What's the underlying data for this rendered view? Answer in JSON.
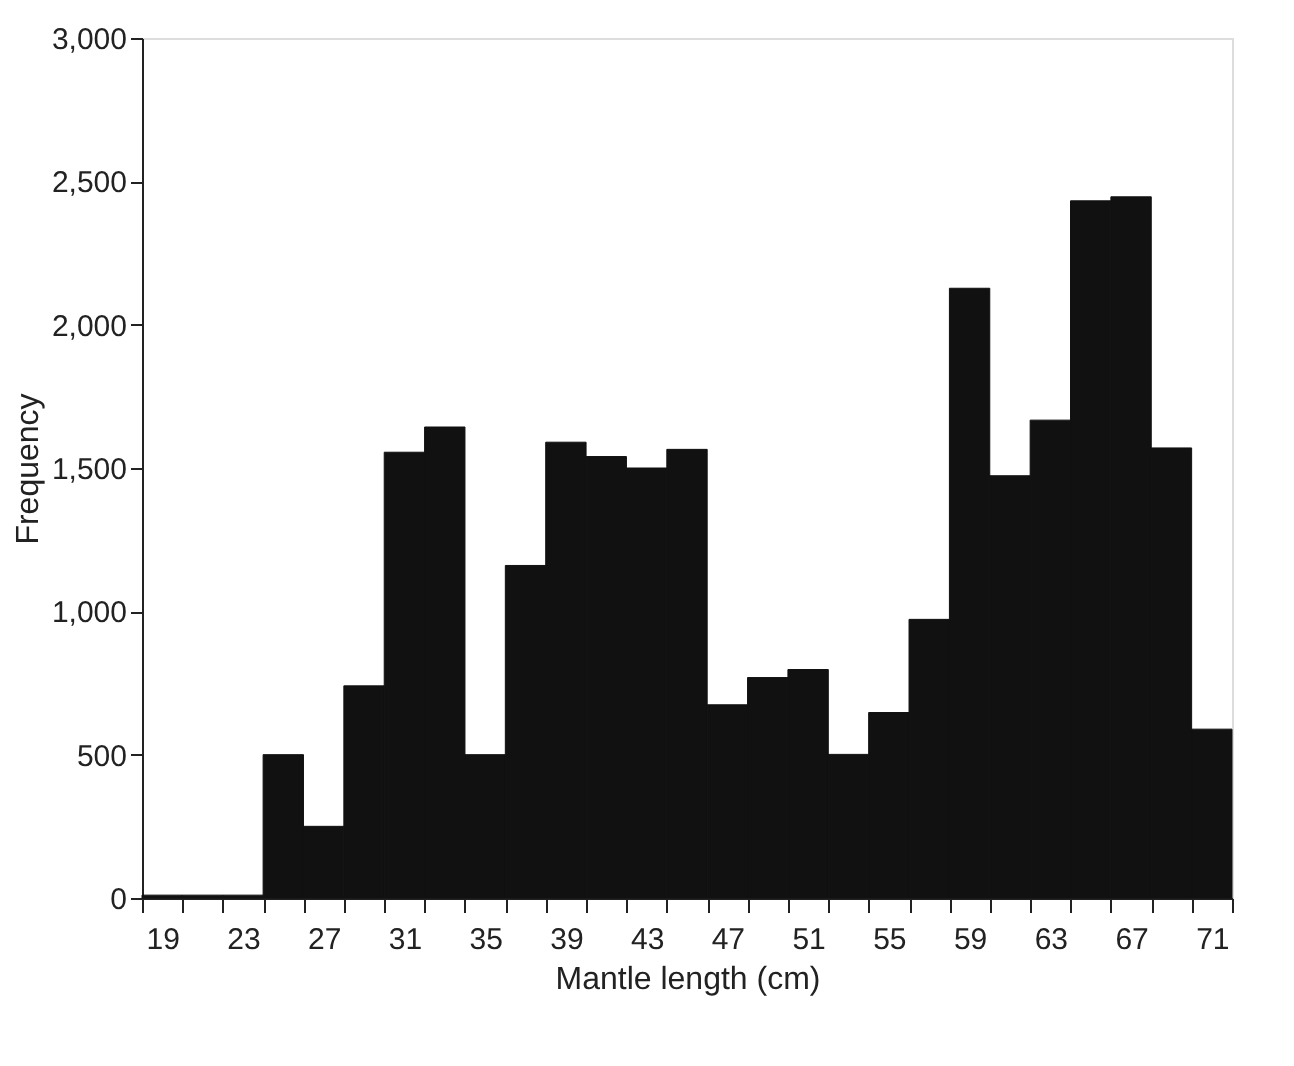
{
  "chart_data": {
    "type": "bar",
    "xlabel": "Mantle length (cm)",
    "ylabel": "Frequency",
    "categories": [
      "19",
      null,
      "23",
      null,
      "27",
      null,
      "31",
      null,
      "35",
      null,
      "39",
      null,
      "43",
      null,
      "47",
      null,
      "51",
      null,
      "55",
      null,
      "59",
      null,
      "63",
      null,
      "67",
      null,
      "71"
    ],
    "values": [
      10,
      10,
      10,
      500,
      250,
      740,
      1555,
      1643,
      500,
      1160,
      1590,
      1540,
      1500,
      1565,
      674,
      769,
      797,
      501,
      647,
      972,
      2127,
      1473,
      1667,
      2432,
      2446,
      1570,
      589
    ],
    "color": "#111111",
    "ylim": [
      0,
      3000
    ],
    "yticks": [
      0,
      500,
      {
        "value": 1000,
        "label": "1,000"
      },
      {
        "value": 1500,
        "label": "1,500"
      },
      {
        "value": 2000,
        "label": "2,000"
      },
      {
        "value": 2500,
        "label": "2,500"
      },
      {
        "value": 3000,
        "label": "3,000"
      }
    ],
    "grid": false
  }
}
